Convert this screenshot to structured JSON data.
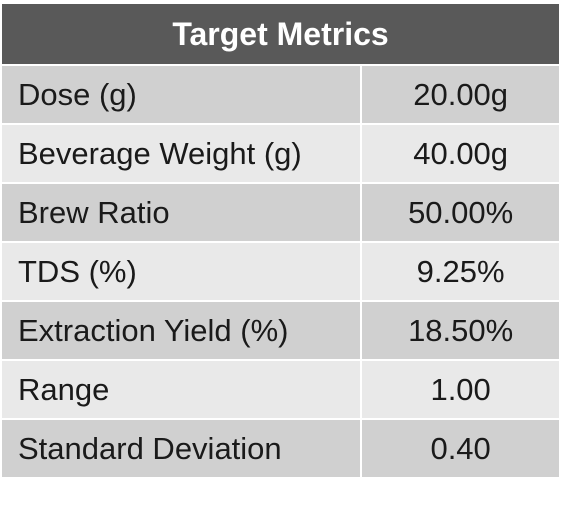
{
  "table": {
    "title": "Target Metrics",
    "rows": [
      {
        "label": "Dose (g)",
        "value": "20.00g"
      },
      {
        "label": "Beverage Weight (g)",
        "value": "40.00g"
      },
      {
        "label": "Brew Ratio",
        "value": "50.00%"
      },
      {
        "label": "TDS (%)",
        "value": "9.25%"
      },
      {
        "label": "Extraction Yield (%)",
        "value": "18.50%"
      },
      {
        "label": "Range",
        "value": "1.00"
      },
      {
        "label": "Standard Deviation",
        "value": "0.40"
      }
    ]
  },
  "colors": {
    "header_bg": "#595959",
    "header_text": "#ffffff",
    "row_dark": "#d0d0d0",
    "row_light": "#e9e9e9",
    "cell_text": "#1a1a1a"
  }
}
